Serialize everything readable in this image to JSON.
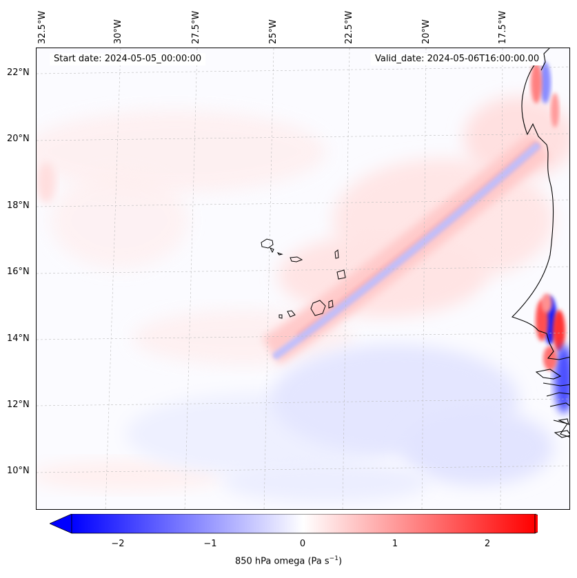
{
  "map": {
    "header": {
      "start_label": "Start date: 2024-05-05_00:00:00",
      "valid_label": "Valid_date: 2024-05-06T16:00:00.00"
    },
    "longitude_labels": [
      "32.5°W",
      "30°W",
      "27.5°W",
      "25°W",
      "22.5°W",
      "20°W",
      "17.5°W"
    ],
    "latitude_labels": [
      "22°N",
      "20°N",
      "18°N",
      "16°N",
      "14°N",
      "12°N",
      "10°N"
    ],
    "field": "850 hPa omega",
    "colors": {
      "negative": "#0000ff",
      "positive": "#ff0000",
      "neutral": "#ffffff",
      "coast": "#000000"
    }
  },
  "colorbar": {
    "title": "850 hPa omega (Pa s",
    "title_sup": "−1",
    "title_end": ")",
    "ticks": [
      "−2",
      "−1",
      "0",
      "1",
      "2"
    ],
    "min": -2.5,
    "max": 2.5
  }
}
